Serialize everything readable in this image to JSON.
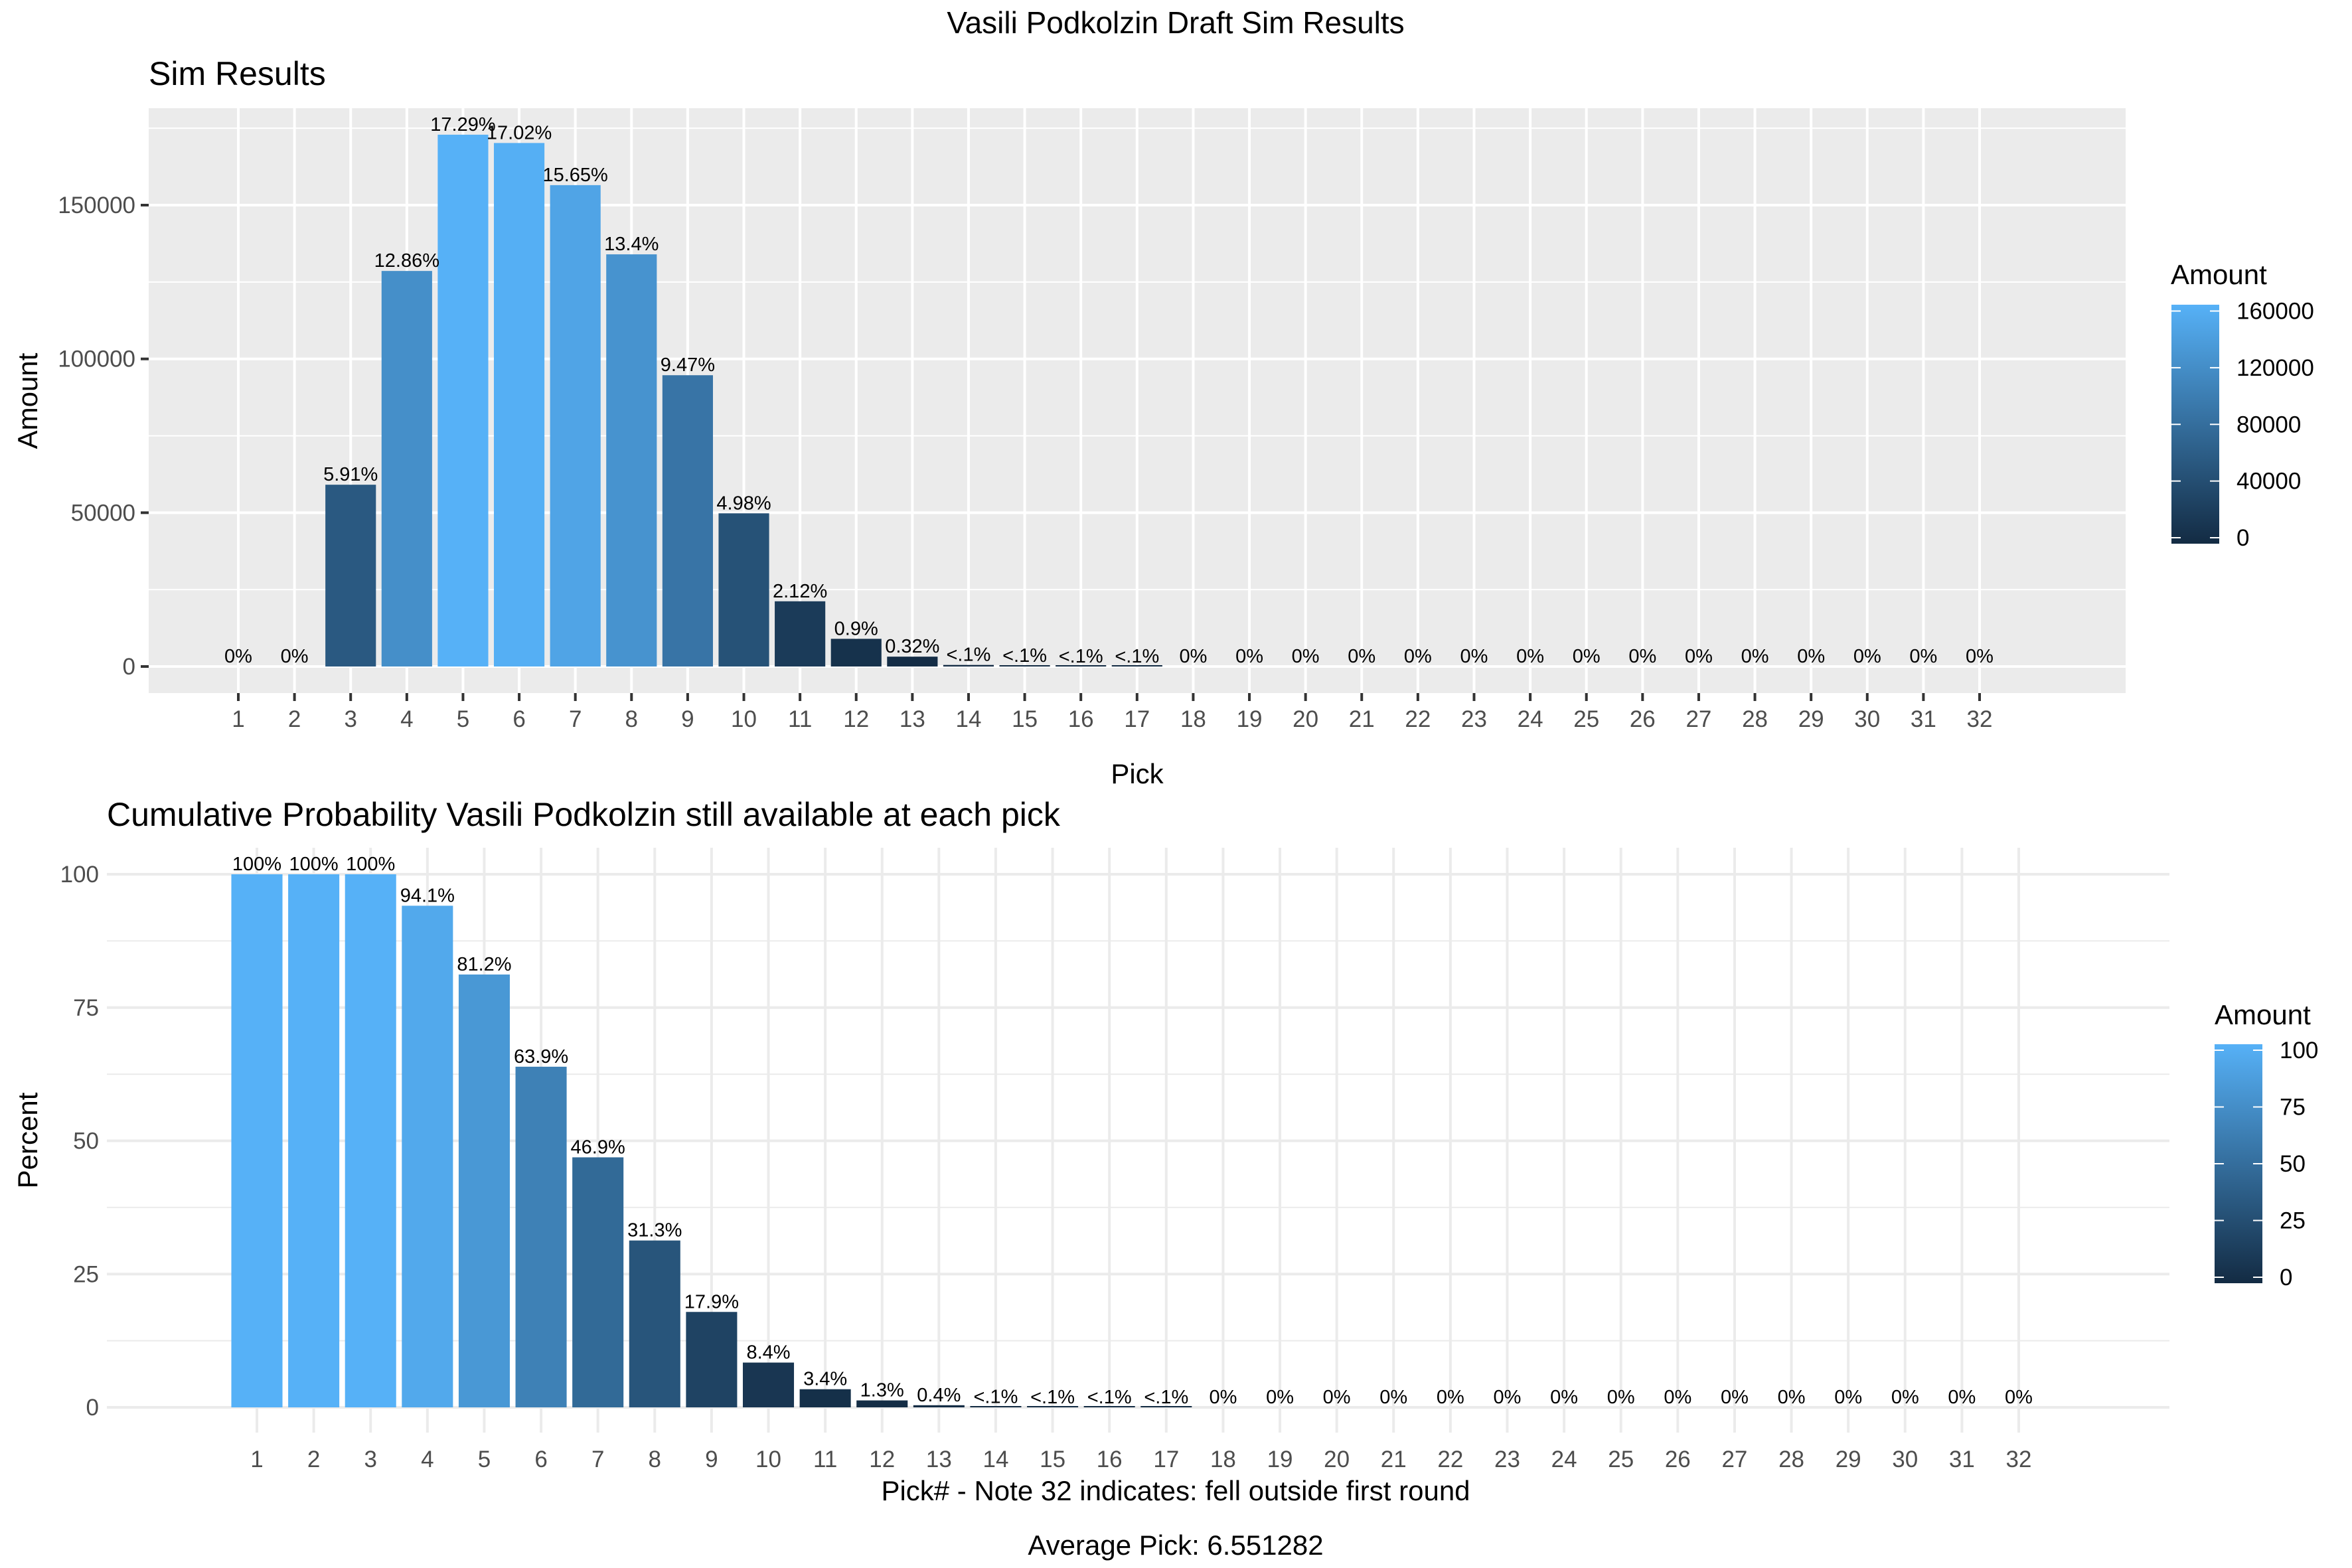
{
  "figure_title": "Vasili Podkolzin Draft Sim Results",
  "caption": "Average Pick: 6.551282",
  "colors": {
    "low": "#132B43",
    "high": "#56B1F7",
    "panel_bg": "#EBEBEB",
    "grid_top": "#FFFFFF",
    "grid_bottom": "#EBEBEB",
    "tick_text": "#4D4D4D"
  },
  "chart_data": [
    {
      "type": "bar",
      "title": "Sim Results",
      "xlabel": "Pick",
      "ylabel": "Amount",
      "categories": [
        "1",
        "2",
        "3",
        "4",
        "5",
        "6",
        "7",
        "8",
        "9",
        "10",
        "11",
        "12",
        "13",
        "14",
        "15",
        "16",
        "17",
        "18",
        "19",
        "20",
        "21",
        "22",
        "23",
        "24",
        "25",
        "26",
        "27",
        "28",
        "29",
        "30",
        "31",
        "32"
      ],
      "values": [
        0,
        0,
        59100,
        128600,
        172900,
        170200,
        156500,
        134000,
        94700,
        49800,
        21200,
        9000,
        3200,
        500,
        200,
        50,
        50,
        0,
        0,
        0,
        0,
        0,
        0,
        0,
        0,
        0,
        0,
        0,
        0,
        0,
        0,
        0
      ],
      "labels": [
        "0%",
        "0%",
        "5.91%",
        "12.86%",
        "17.29%",
        "17.02%",
        "15.65%",
        "13.4%",
        "9.47%",
        "4.98%",
        "2.12%",
        "0.9%",
        "0.32%",
        "<.1%",
        "<.1%",
        "<.1%",
        "<.1%",
        "0%",
        "0%",
        "0%",
        "0%",
        "0%",
        "0%",
        "0%",
        "0%",
        "0%",
        "0%",
        "0%",
        "0%",
        "0%",
        "0%",
        "0%"
      ],
      "yticks": [
        0,
        50000,
        100000,
        150000
      ],
      "ytick_labels": [
        "0",
        "50000",
        "100000",
        "150000"
      ],
      "ylim": [
        -8700,
        181500
      ],
      "grid": true,
      "legend": {
        "title": "Amount",
        "position": "right",
        "range": [
          0,
          172900
        ],
        "ticks": [
          0,
          40000,
          80000,
          120000,
          160000
        ],
        "tick_labels": [
          "0",
          "40000",
          "80000",
          "120000",
          "160000"
        ]
      }
    },
    {
      "type": "bar",
      "title": "Cumulative Probability Vasili Podkolzin still available at each pick",
      "xlabel": "Pick# - Note 32 indicates: fell outside first round",
      "ylabel": "Percent",
      "categories": [
        "1",
        "2",
        "3",
        "4",
        "5",
        "6",
        "7",
        "8",
        "9",
        "10",
        "11",
        "12",
        "13",
        "14",
        "15",
        "16",
        "17",
        "18",
        "19",
        "20",
        "21",
        "22",
        "23",
        "24",
        "25",
        "26",
        "27",
        "28",
        "29",
        "30",
        "31",
        "32"
      ],
      "values": [
        100,
        100,
        100,
        94.1,
        81.2,
        63.9,
        46.9,
        31.3,
        17.9,
        8.4,
        3.4,
        1.3,
        0.4,
        0.08,
        0.03,
        0.01,
        0.01,
        0,
        0,
        0,
        0,
        0,
        0,
        0,
        0,
        0,
        0,
        0,
        0,
        0,
        0,
        0
      ],
      "labels": [
        "100%",
        "100%",
        "100%",
        "94.1%",
        "81.2%",
        "63.9%",
        "46.9%",
        "31.3%",
        "17.9%",
        "8.4%",
        "3.4%",
        "1.3%",
        "0.4%",
        "<.1%",
        "<.1%",
        "<.1%",
        "<.1%",
        "0%",
        "0%",
        "0%",
        "0%",
        "0%",
        "0%",
        "0%",
        "0%",
        "0%",
        "0%",
        "0%",
        "0%",
        "0%",
        "0%",
        "0%"
      ],
      "yticks": [
        0,
        25,
        50,
        75,
        100
      ],
      "ytick_labels": [
        "0",
        "25",
        "50",
        "75",
        "100"
      ],
      "ylim": [
        -5,
        105
      ],
      "grid": true,
      "legend": {
        "title": "Amount",
        "position": "right",
        "range": [
          0,
          100
        ],
        "ticks": [
          0,
          25,
          50,
          75,
          100
        ],
        "tick_labels": [
          "0",
          "25",
          "50",
          "75",
          "100"
        ]
      }
    }
  ]
}
